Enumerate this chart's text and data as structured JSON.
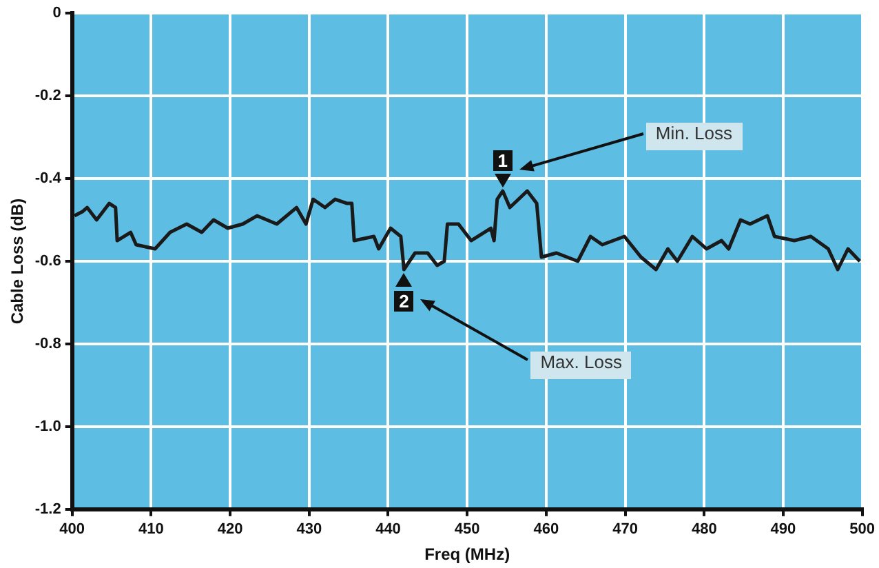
{
  "chart_data": {
    "type": "line",
    "xlabel": "Freq (MHz)",
    "ylabel": "Cable Loss (dB)",
    "xlim": [
      400,
      500
    ],
    "xticks": [
      400,
      410,
      420,
      430,
      440,
      450,
      460,
      470,
      480,
      490,
      500
    ],
    "ylim": [
      -1.2,
      0
    ],
    "yticks": [
      0,
      -0.2,
      -0.4,
      -0.6,
      -0.8,
      {
        "value": -1,
        "label": "-1.0"
      },
      -1.2
    ],
    "grid": true,
    "legend": false,
    "marker": "none",
    "line_style": "solid",
    "series": [
      {
        "color": "#1a1a1a",
        "x": [
          400.3,
          401.3,
          401.9,
          403.1,
          404.7,
          405.5,
          405.7,
          407.4,
          408.1,
          410.5,
          412.4,
          414.5,
          416.4,
          417.9,
          419.7,
          421.6,
          423.4,
          425.9,
          428.4,
          429.6,
          430.5,
          432.0,
          433.3,
          434.8,
          435.4,
          435.7,
          438.2,
          438.8,
          440.3,
          441.6,
          442.0,
          443.4,
          445.0,
          446.2,
          447.1,
          447.5,
          448.9,
          450.5,
          453.0,
          453.4,
          453.8,
          454.5,
          455.4,
          457.6,
          458.8,
          459.4,
          461.3,
          464.0,
          465.6,
          467.1,
          469.9,
          472.0,
          473.9,
          475.4,
          476.6,
          478.5,
          480.3,
          482.2,
          483.1,
          484.6,
          485.8,
          488.0,
          488.9,
          491.4,
          493.5,
          495.7,
          496.9,
          498.2,
          499.7
        ],
        "values": [
          -0.49,
          -0.48,
          -0.47,
          -0.5,
          -0.46,
          -0.47,
          -0.55,
          -0.53,
          -0.56,
          -0.57,
          -0.53,
          -0.51,
          -0.53,
          -0.5,
          -0.52,
          -0.51,
          -0.49,
          -0.51,
          -0.47,
          -0.51,
          -0.45,
          -0.47,
          -0.45,
          -0.46,
          -0.46,
          -0.55,
          -0.54,
          -0.57,
          -0.52,
          -0.54,
          -0.62,
          -0.58,
          -0.58,
          -0.61,
          -0.6,
          -0.51,
          -0.51,
          -0.55,
          -0.52,
          -0.55,
          -0.45,
          -0.43,
          -0.47,
          -0.43,
          -0.46,
          -0.59,
          -0.58,
          -0.6,
          -0.54,
          -0.56,
          -0.54,
          -0.59,
          -0.62,
          -0.57,
          -0.6,
          -0.54,
          -0.57,
          -0.55,
          -0.57,
          -0.5,
          -0.51,
          -0.49,
          -0.54,
          -0.55,
          -0.54,
          -0.57,
          -0.62,
          -0.57,
          -0.6
        ]
      }
    ],
    "annotations": [
      {
        "text": "1",
        "x": 454.5,
        "y": -0.43
      },
      "Min. Loss",
      {
        "text": "2",
        "x": 442,
        "y": -0.62
      },
      "Max. Loss"
    ]
  }
}
